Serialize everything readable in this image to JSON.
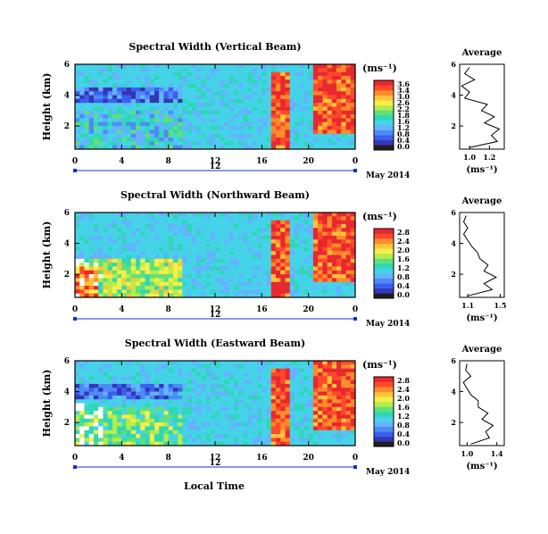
{
  "figure": {
    "date_label": "May 2014",
    "bottom_xlabel": "Local Time"
  },
  "colors": {
    "scale": [
      "#ffffff",
      "#1e1e1e",
      "#3535b5",
      "#3a5ff0",
      "#4e8af5",
      "#63b3ff",
      "#45d3e8",
      "#2fd7b5",
      "#5fe07a",
      "#b6ec4a",
      "#f5ef4a",
      "#ffc43a",
      "#ff8c2a",
      "#ff4a2a",
      "#e8282f"
    ],
    "background_blue": "#4e8af5"
  },
  "panels": [
    {
      "title": "Spectral Width (Vertical Beam)",
      "ylabel": "Height (km)",
      "unit": "(ms⁻¹)",
      "colorbar_ticks": [
        "3.6",
        "3.4",
        "3.0",
        "2.6",
        "2.2",
        "1.8",
        "1.6",
        "1.2",
        "0.8",
        "0.4",
        "0.0"
      ],
      "avg_title": "Average",
      "avg_xlabel": "(ms⁻¹)",
      "avg_xticks": [
        "1.0",
        "1.2"
      ],
      "avg_yticks": [
        "6",
        "4",
        "2"
      ],
      "x_ticks": [
        "0",
        "4",
        "8",
        "12",
        "16",
        "20",
        "0"
      ],
      "y_ticks": [
        "6",
        "4",
        "2"
      ],
      "mid_label": "12"
    },
    {
      "title": "Spectral Width (Northward Beam)",
      "ylabel": "Height (km)",
      "unit": "(ms⁻¹)",
      "colorbar_ticks": [
        "2.8",
        "2.4",
        "2.0",
        "1.6",
        "1.2",
        "0.8",
        "0.4",
        "0.0"
      ],
      "avg_title": "Average",
      "avg_xlabel": "(ms⁻¹)",
      "avg_xticks": [
        "1.1",
        "1.5"
      ],
      "avg_yticks": [
        "6",
        "4",
        "2"
      ],
      "x_ticks": [
        "0",
        "4",
        "8",
        "12",
        "16",
        "20",
        "0"
      ],
      "y_ticks": [
        "6",
        "4",
        "2"
      ],
      "mid_label": "12"
    },
    {
      "title": "Spectral Width (Eastward Beam)",
      "ylabel": "Height (km)",
      "unit": "(ms⁻¹)",
      "colorbar_ticks": [
        "2.8",
        "2.4",
        "2.0",
        "1.6",
        "1.2",
        "0.8",
        "0.4",
        "0.0"
      ],
      "avg_title": "Average",
      "avg_xlabel": "(ms⁻¹)",
      "avg_xticks": [
        "1.0",
        "1.4"
      ],
      "avg_yticks": [
        "6",
        "4",
        "2"
      ],
      "x_ticks": [
        "0",
        "4",
        "8",
        "12",
        "16",
        "20",
        "0"
      ],
      "y_ticks": [
        "6",
        "4",
        "2"
      ],
      "mid_label": "12"
    }
  ],
  "chart_data": [
    {
      "type": "heatmap",
      "title": "Spectral Width (Vertical Beam)",
      "xlabel": "",
      "ylabel": "Height (km)",
      "xlim": [
        0,
        24
      ],
      "ylim": [
        0.5,
        6
      ],
      "colorbar_label": "(ms⁻¹)",
      "colorbar_range": [
        0.0,
        3.6
      ],
      "regions": [
        {
          "x": [
            0,
            9
          ],
          "y": [
            0.5,
            3
          ],
          "value": 1.2
        },
        {
          "x": [
            0,
            9
          ],
          "y": [
            3.5,
            4.5
          ],
          "value": 0.4
        },
        {
          "x": [
            17,
            18.5
          ],
          "y": [
            0.5,
            5.5
          ],
          "value": 3.4
        },
        {
          "x": [
            20.5,
            24
          ],
          "y": [
            1.5,
            6
          ],
          "value": 3.4
        }
      ],
      "average_profile": {
        "xlim": [
          0.9,
          1.35
        ],
        "ylim": [
          0.5,
          6
        ],
        "xlabel": "(ms⁻¹)",
        "heights": [
          0.6,
          1.0,
          1.4,
          1.8,
          2.2,
          2.6,
          3.0,
          3.4,
          3.8,
          4.2,
          4.6,
          5.0,
          5.4,
          5.8
        ],
        "values": [
          1.0,
          1.28,
          1.22,
          1.3,
          1.15,
          1.25,
          1.12,
          1.18,
          0.95,
          1.0,
          0.92,
          1.05,
          0.95,
          1.0
        ]
      }
    },
    {
      "type": "heatmap",
      "title": "Spectral Width (Northward Beam)",
      "xlabel": "",
      "ylabel": "Height (km)",
      "xlim": [
        0,
        24
      ],
      "ylim": [
        0.5,
        6
      ],
      "colorbar_label": "(ms⁻¹)",
      "colorbar_range": [
        0.0,
        2.8
      ],
      "regions": [
        {
          "x": [
            0,
            9
          ],
          "y": [
            0.5,
            3
          ],
          "value": 1.6
        },
        {
          "x": [
            0,
            2
          ],
          "y": [
            0.5,
            2.5
          ],
          "value": 2.4
        },
        {
          "x": [
            17,
            18.5
          ],
          "y": [
            0.5,
            5.5
          ],
          "value": 2.6
        },
        {
          "x": [
            20.5,
            24
          ],
          "y": [
            1.5,
            6
          ],
          "value": 2.6
        }
      ],
      "average_profile": {
        "xlim": [
          1.0,
          1.55
        ],
        "ylim": [
          0.5,
          6
        ],
        "xlabel": "(ms⁻¹)",
        "heights": [
          0.6,
          1.0,
          1.4,
          1.8,
          2.2,
          2.6,
          3.0,
          3.4,
          3.8,
          4.2,
          4.6,
          5.0,
          5.4,
          5.8
        ],
        "values": [
          1.1,
          1.4,
          1.3,
          1.45,
          1.3,
          1.35,
          1.25,
          1.22,
          1.15,
          1.1,
          1.05,
          1.1,
          1.05,
          1.08
        ]
      }
    },
    {
      "type": "heatmap",
      "title": "Spectral Width (Eastward Beam)",
      "xlabel": "Local Time",
      "ylabel": "Height (km)",
      "xlim": [
        0,
        24
      ],
      "ylim": [
        0.5,
        6
      ],
      "colorbar_label": "(ms⁻¹)",
      "colorbar_range": [
        0.0,
        2.8
      ],
      "regions": [
        {
          "x": [
            0,
            9
          ],
          "y": [
            0.5,
            3
          ],
          "value": 1.4
        },
        {
          "x": [
            0,
            9
          ],
          "y": [
            3.5,
            4.5
          ],
          "value": 0.4
        },
        {
          "x": [
            17,
            18.5
          ],
          "y": [
            0.5,
            5.5
          ],
          "value": 2.6
        },
        {
          "x": [
            20.5,
            24
          ],
          "y": [
            1.5,
            6
          ],
          "value": 2.6
        }
      ],
      "average_profile": {
        "xlim": [
          0.9,
          1.5
        ],
        "ylim": [
          0.5,
          6
        ],
        "xlabel": "(ms⁻¹)",
        "heights": [
          0.6,
          1.0,
          1.4,
          1.8,
          2.2,
          2.6,
          3.0,
          3.4,
          3.8,
          4.2,
          4.6,
          5.0,
          5.4,
          5.8
        ],
        "values": [
          1.05,
          1.3,
          1.25,
          1.35,
          1.2,
          1.28,
          1.15,
          1.15,
          1.05,
          1.0,
          0.95,
          1.05,
          0.98,
          1.0
        ]
      }
    }
  ]
}
